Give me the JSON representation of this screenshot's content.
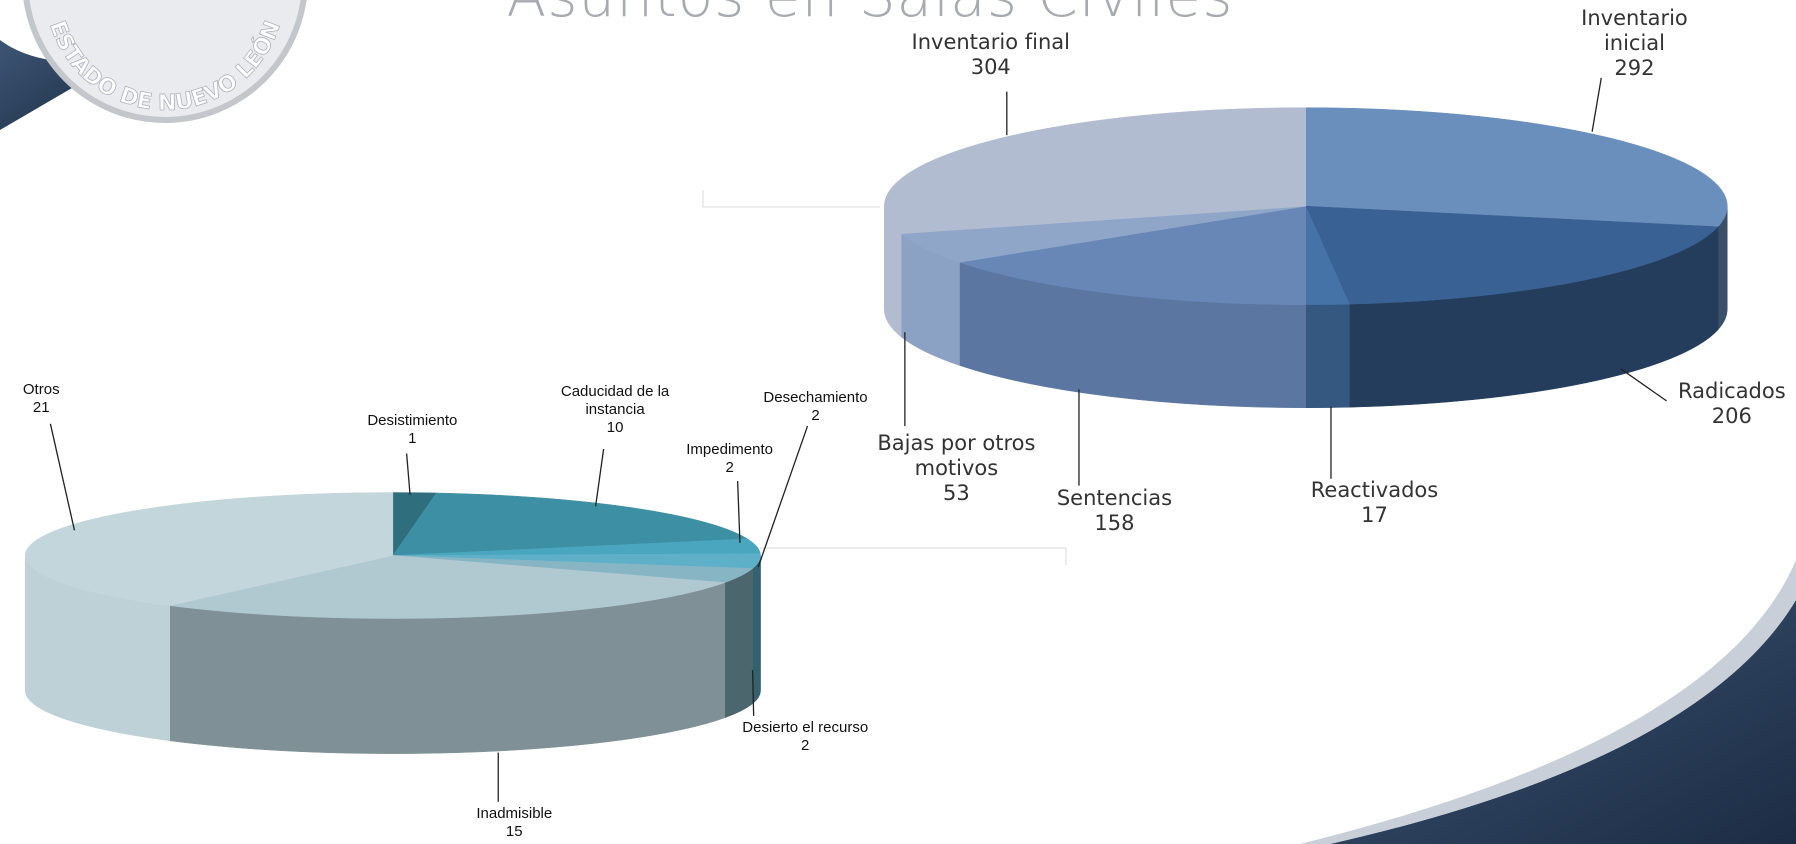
{
  "title": "Asuntos en Salas Civiles",
  "logo_text": "ESTADO DE NUEVO LEÓN",
  "chart_data": [
    {
      "type": "pie3d",
      "categories": [
        "Inventario inicial",
        "Radicados",
        "Reactivados",
        "Sentencias",
        "Bajas por otros motivos",
        "Inventario final"
      ],
      "values": [
        292,
        206,
        17,
        158,
        53,
        304
      ],
      "colors": [
        "#6a8fbd",
        "#3a6193",
        "#4573a8",
        "#6887b7",
        "#8fa6c9",
        "#b2bcd0"
      ]
    },
    {
      "type": "pie3d",
      "categories": [
        "Desistimiento",
        "Caducidad de la instancia",
        "Impedimento",
        "Desechamiento",
        "Desierto el recurso",
        "Inadmisible",
        "Otros"
      ],
      "values": [
        1,
        10,
        2,
        2,
        2,
        15,
        21
      ],
      "colors": [
        "#2f6f7d",
        "#3d8fa4",
        "#4aa6bf",
        "#5db0c8",
        "#88b5c4",
        "#b0c8d0",
        "#c3d6dc"
      ]
    }
  ]
}
